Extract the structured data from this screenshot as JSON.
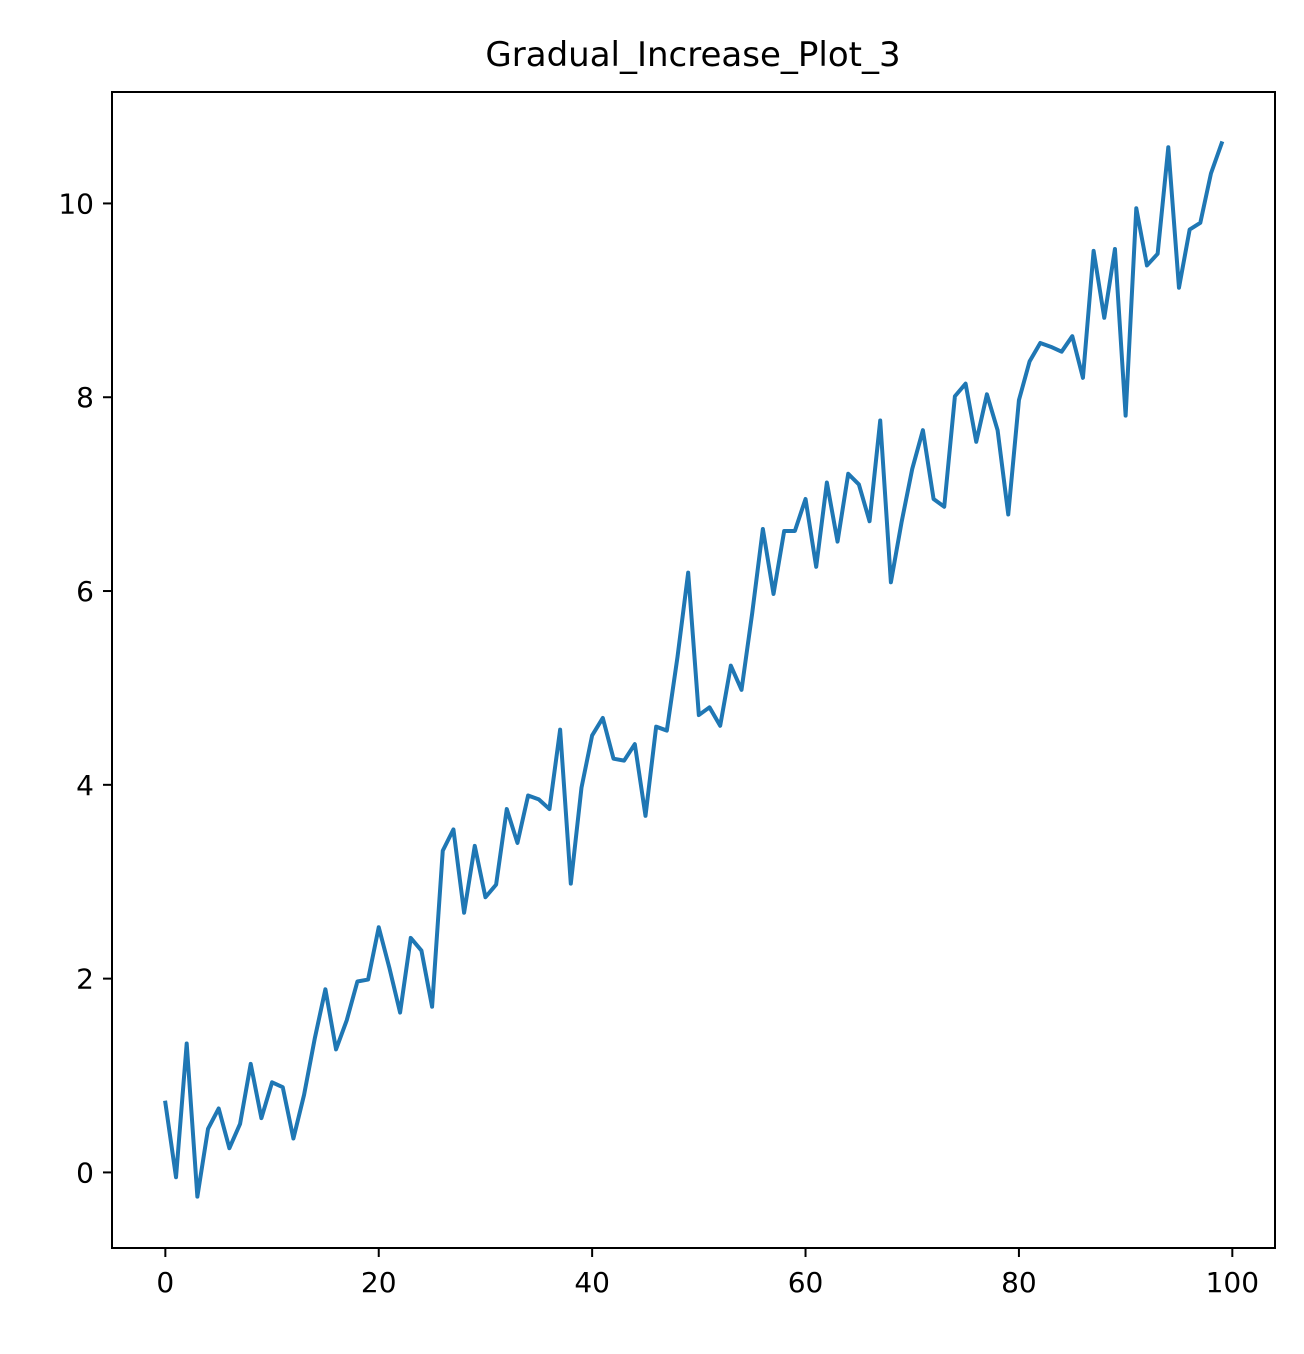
{
  "chart_data": {
    "type": "line",
    "title": "Gradual_Increase_Plot_3",
    "xlabel": "",
    "ylabel": "",
    "xlim": [
      -5,
      104
    ],
    "ylim": [
      -0.78,
      11.15
    ],
    "x_ticks": [
      0,
      20,
      40,
      60,
      80,
      100
    ],
    "y_ticks": [
      0,
      2,
      4,
      6,
      8,
      10
    ],
    "grid": false,
    "legend": "none",
    "colors": {
      "line": "#1f77b4",
      "axes": "#000000"
    },
    "series": [
      {
        "x": [
          0,
          1,
          2,
          3,
          4,
          5,
          6,
          7,
          8,
          9,
          10,
          11,
          12,
          13,
          14,
          15,
          16,
          17,
          18,
          19,
          20,
          21,
          22,
          23,
          24,
          25,
          26,
          27,
          28,
          29,
          30,
          31,
          32,
          33,
          34,
          35,
          36,
          37,
          38,
          39,
          40,
          41,
          42,
          43,
          44,
          45,
          46,
          47,
          48,
          49,
          50,
          51,
          52,
          53,
          54,
          55,
          56,
          57,
          58,
          59,
          60,
          61,
          62,
          63,
          64,
          65,
          66,
          67,
          68,
          69,
          70,
          71,
          72,
          73,
          74,
          75,
          76,
          77,
          78,
          79,
          80,
          81,
          82,
          83,
          84,
          85,
          86,
          87,
          88,
          89,
          90,
          91,
          92,
          93,
          94,
          95,
          96,
          97,
          98,
          99
        ],
        "values": [
          0.72,
          -0.05,
          1.33,
          -0.25,
          0.45,
          0.66,
          0.25,
          0.5,
          1.12,
          0.56,
          0.93,
          0.88,
          0.35,
          0.8,
          1.38,
          1.89,
          1.27,
          1.57,
          1.97,
          1.99,
          2.53,
          2.11,
          1.65,
          2.42,
          2.29,
          1.71,
          3.32,
          3.54,
          2.68,
          3.37,
          2.84,
          2.97,
          3.75,
          3.4,
          3.89,
          3.85,
          3.75,
          4.57,
          2.98,
          3.97,
          4.51,
          4.69,
          4.27,
          4.25,
          4.42,
          3.68,
          4.6,
          4.56,
          5.32,
          6.19,
          4.72,
          4.8,
          4.61,
          5.23,
          4.98,
          5.77,
          6.64,
          5.97,
          6.62,
          6.62,
          6.95,
          6.25,
          7.12,
          6.51,
          7.21,
          7.1,
          6.72,
          7.76,
          6.09,
          6.71,
          7.26,
          7.66,
          6.95,
          6.87,
          8.01,
          8.14,
          7.54,
          8.03,
          7.66,
          6.79,
          7.97,
          8.37,
          8.56,
          8.52,
          8.47,
          8.63,
          8.2,
          9.51,
          8.82,
          9.53,
          7.81,
          9.95,
          9.36,
          9.48,
          10.58,
          9.13,
          9.73,
          9.8,
          10.31,
          10.62
        ]
      }
    ]
  }
}
